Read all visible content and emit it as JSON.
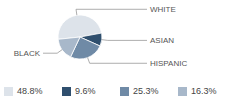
{
  "chart_data": {
    "type": "pie",
    "categories": [
      "WHITE",
      "ASIAN",
      "HISPANIC",
      "BLACK"
    ],
    "values": [
      48.8,
      9.6,
      25.3,
      16.3
    ],
    "value_labels": [
      "48.8%",
      "9.6%",
      "25.3%",
      "16.3%"
    ],
    "colors": [
      "#dde3ea",
      "#2f4f6e",
      "#6f8aa6",
      "#a8b8ca"
    ],
    "legend": "bottom"
  }
}
